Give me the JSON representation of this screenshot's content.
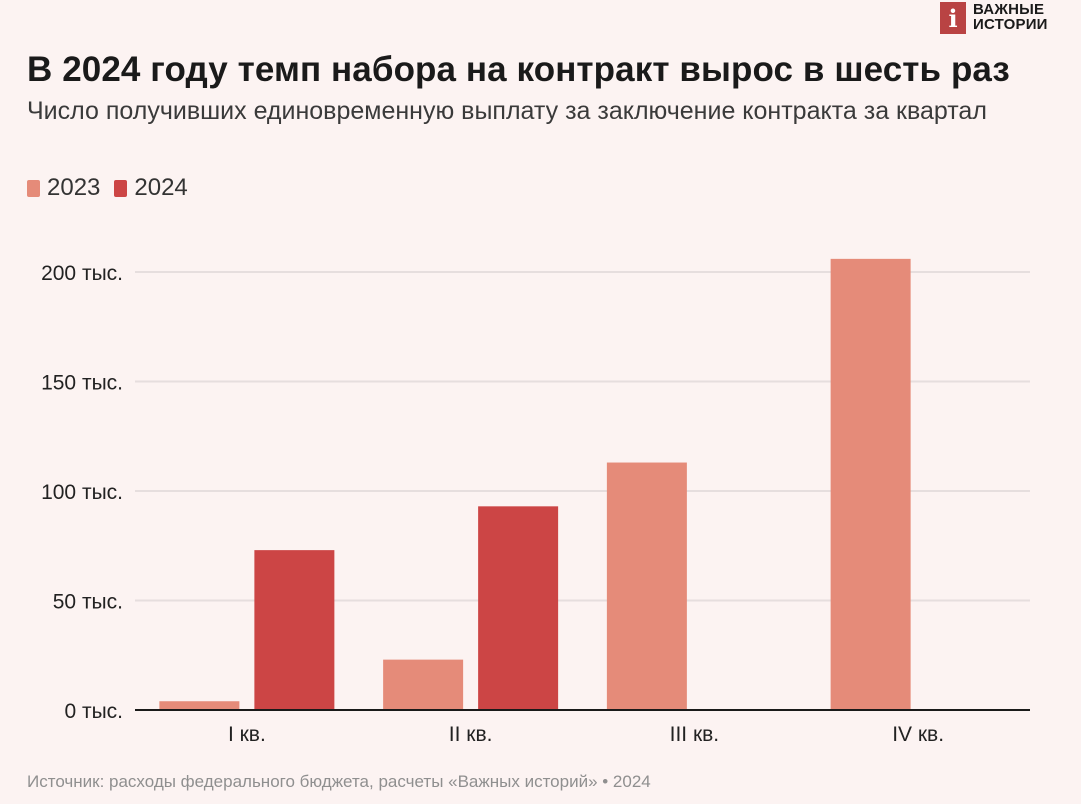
{
  "brand": {
    "mark": "i",
    "line1": "ВАЖНЫЕ",
    "line2": "ИСТОРИИ"
  },
  "title": "В 2024 году темп набора на контракт вырос в шесть раз",
  "subtitle": "Число получивших единовременную выплату за заключение контракта за квартал",
  "source": "Источник: расходы федерального бюджета, расчеты «Важных историй» • 2024",
  "colors": {
    "s2023": "#e58b79",
    "s2024": "#cc4545",
    "grid": "#e6dede",
    "axis": "#1a1a1a"
  },
  "legend": [
    {
      "label": "2023",
      "color": "#e58b79"
    },
    {
      "label": "2024",
      "color": "#cc4545"
    }
  ],
  "chart_data": {
    "type": "bar",
    "title": "В 2024 году темп набора на контракт вырос в шесть раз",
    "categories": [
      "I кв.",
      "II кв.",
      "III кв.",
      "IV кв."
    ],
    "series": [
      {
        "name": "2023",
        "values": [
          4000,
          23000,
          113000,
          206000
        ]
      },
      {
        "name": "2024",
        "values": [
          73000,
          93000,
          null,
          null
        ]
      }
    ],
    "ylim": [
      0,
      200000
    ],
    "yticks": [
      0,
      50000,
      100000,
      150000,
      200000
    ],
    "ytick_labels": [
      "0 тыс.",
      "50 тыс.",
      "100 тыс.",
      "150 тыс.",
      "200 тыс."
    ],
    "grid": true,
    "legend_position": "top-left"
  }
}
